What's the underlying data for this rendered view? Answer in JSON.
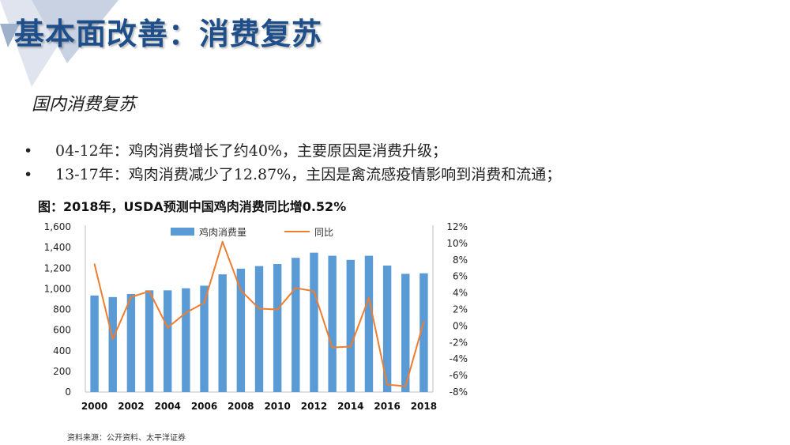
{
  "header": {
    "title": "基本面改善：消费复苏",
    "subtitle": "国内消费复苏"
  },
  "bullets": [
    {
      "marker": "•",
      "text": "04-12年：鸡肉消费增长了约40%，主要原因是消费升级；"
    },
    {
      "marker": "•",
      "text": "13-17年：鸡肉消费减少了12.87%，主因是禽流感疫情影响到消费和流通；"
    }
  ],
  "figure": {
    "title": "图：2018年，USDA预测中国鸡肉消费同比增0.52%",
    "source": "资料来源：公开资料、太平洋证券"
  },
  "colors": {
    "title": "#1f4f8a",
    "bar": "#5b9bd5",
    "line": "#ed7d31",
    "deco_light": "#d6dce8",
    "deco_dark": "#8ea3c2"
  },
  "chart_data": {
    "type": "bar",
    "x": [
      2000,
      2001,
      2002,
      2003,
      2004,
      2005,
      2006,
      2007,
      2008,
      2009,
      2010,
      2011,
      2012,
      2013,
      2014,
      2015,
      2016,
      2017,
      2018
    ],
    "x_tick_labels": [
      "2000",
      "2002",
      "2004",
      "2006",
      "2008",
      "2010",
      "2012",
      "2014",
      "2016",
      "2018"
    ],
    "series": [
      {
        "name": "鸡肉消费量",
        "type": "bar",
        "axis": "left",
        "values": [
          935,
          920,
          950,
          985,
          985,
          1005,
          1030,
          1140,
          1195,
          1220,
          1240,
          1300,
          1350,
          1320,
          1280,
          1320,
          1225,
          1145,
          1150
        ]
      },
      {
        "name": "同比",
        "type": "line",
        "axis": "right",
        "values": [
          7.5,
          -1.6,
          3.5,
          4.2,
          -0.2,
          1.6,
          2.8,
          10.2,
          4.3,
          2.1,
          2.0,
          4.6,
          4.2,
          -2.6,
          -2.5,
          3.4,
          -7.1,
          -7.3,
          0.52
        ]
      }
    ],
    "y_left": {
      "min": 0,
      "max": 1600,
      "step": 200,
      "labels": [
        "0",
        "200",
        "400",
        "600",
        "800",
        "1,000",
        "1,200",
        "1,400",
        "1,600"
      ]
    },
    "y_right": {
      "min": -8,
      "max": 12,
      "step": 2,
      "labels": [
        "-8%",
        "-6%",
        "-4%",
        "-2%",
        "0%",
        "2%",
        "4%",
        "6%",
        "8%",
        "10%",
        "12%"
      ]
    },
    "legend_position": "top-center"
  }
}
